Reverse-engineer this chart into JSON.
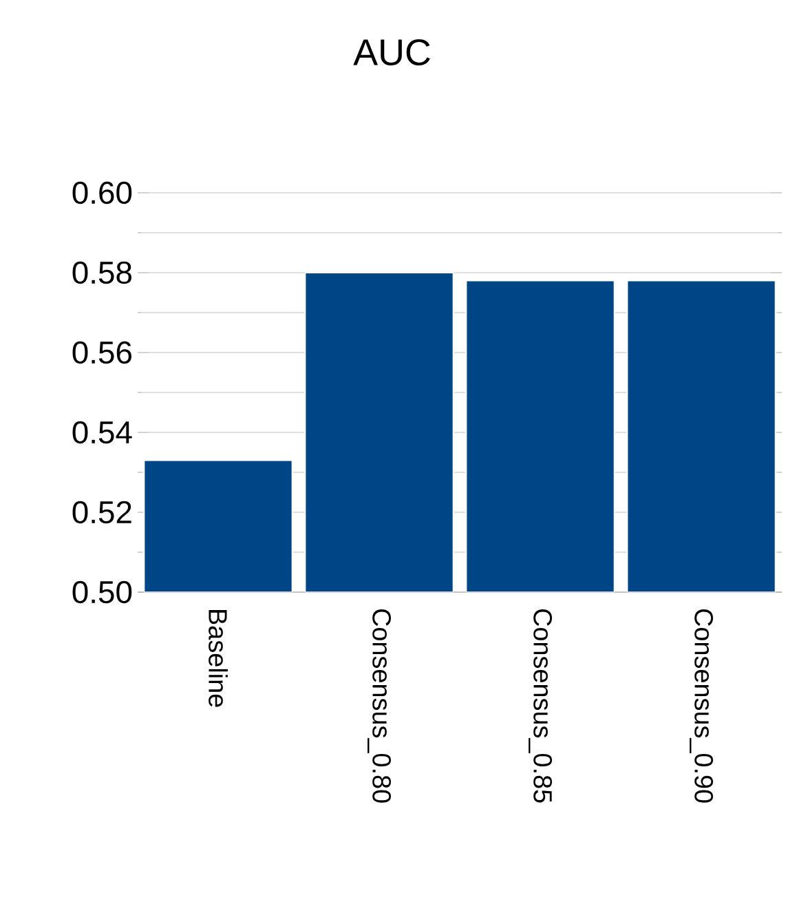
{
  "chart_data": {
    "type": "bar",
    "title": "AUC",
    "categories": [
      "Baseline",
      "Consensus_0.80",
      "Consensus_0.85",
      "Consensus_0.90"
    ],
    "values": [
      0.533,
      0.58,
      0.578,
      0.578
    ],
    "color": "#004586",
    "ylim": [
      0.5,
      0.6
    ],
    "yticks": [
      {
        "value": 0.5,
        "label": "0.50"
      },
      0.52,
      0.54,
      0.56,
      0.58,
      {
        "value": 0.6,
        "label": "0.60"
      }
    ],
    "grid": "y"
  }
}
